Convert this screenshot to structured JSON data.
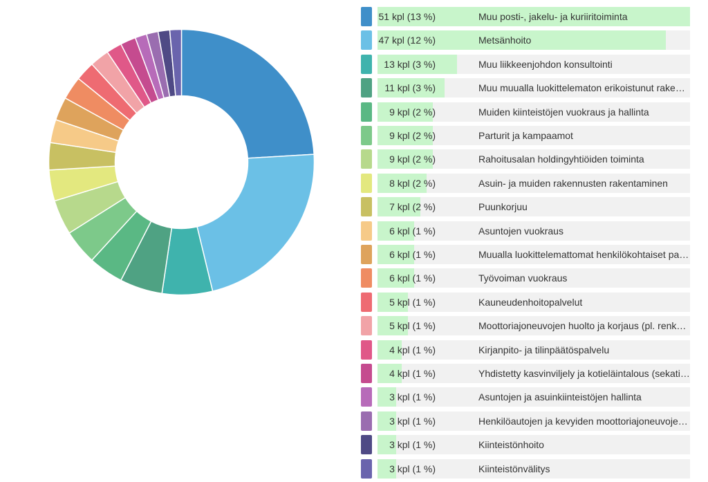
{
  "chart_data": {
    "type": "pie",
    "max_count": 51,
    "slices": [
      {
        "count": 51,
        "value_label": "51 kpl (13 %)",
        "label": "Muu posti-, jakelu- ja kuriiritoiminta",
        "color": "#3f8fc9"
      },
      {
        "count": 47,
        "value_label": "47 kpl (12 %)",
        "label": "Metsänhoito",
        "color": "#6bc0e6"
      },
      {
        "count": 13,
        "value_label": "13 kpl (3 %)",
        "label": "Muu liikkeenjohdon konsultointi",
        "color": "#3fb3ad"
      },
      {
        "count": 11,
        "value_label": "11 kpl (3 %)",
        "label": "Muu muualla luokittelematon erikoistunut rakentamistoiminta",
        "color": "#4fa283"
      },
      {
        "count": 9,
        "value_label": "9 kpl (2 %)",
        "label": "Muiden kiinteistöjen vuokraus ja hallinta",
        "color": "#5ab884"
      },
      {
        "count": 9,
        "value_label": "9 kpl (2 %)",
        "label": "Parturit ja kampaamot",
        "color": "#7dc98a"
      },
      {
        "count": 9,
        "value_label": "9 kpl (2 %)",
        "label": "Rahoitusalan holdingyhtiöiden toiminta",
        "color": "#b7d98c"
      },
      {
        "count": 8,
        "value_label": "8 kpl (2 %)",
        "label": "Asuin- ja muiden rakennusten rakentaminen",
        "color": "#e3e87f"
      },
      {
        "count": 7,
        "value_label": "7 kpl (2 %)",
        "label": "Puunkorjuu",
        "color": "#c8c062"
      },
      {
        "count": 6,
        "value_label": "6 kpl (1 %)",
        "label": "Asuntojen vuokraus",
        "color": "#f6ca88"
      },
      {
        "count": 6,
        "value_label": "6 kpl (1 %)",
        "label": "Muualla luokittelemattomat henkilökohtaiset palvelut",
        "color": "#dea35c"
      },
      {
        "count": 6,
        "value_label": "6 kpl (1 %)",
        "label": "Työvoiman vuokraus",
        "color": "#ef8c62"
      },
      {
        "count": 5,
        "value_label": "5 kpl (1 %)",
        "label": "Kauneudenhoitopalvelut",
        "color": "#ee6b72"
      },
      {
        "count": 5,
        "value_label": "5 kpl (1 %)",
        "label": "Moottoriajoneuvojen huolto ja korjaus (pl. renkaat)",
        "color": "#f1a3a7"
      },
      {
        "count": 4,
        "value_label": "4 kpl (1 %)",
        "label": "Kirjanpito- ja tilinpäätöspalvelu",
        "color": "#e05888"
      },
      {
        "count": 4,
        "value_label": "4 kpl (1 %)",
        "label": "Yhdistetty kasvinviljely ja kotieläintalous (sekatilat)",
        "color": "#c54b8f"
      },
      {
        "count": 3,
        "value_label": "3 kpl (1 %)",
        "label": "Asuntojen ja asuinkiinteistöjen hallinta",
        "color": "#b76bb9"
      },
      {
        "count": 3,
        "value_label": "3 kpl (1 %)",
        "label": "Henkilöautojen ja kevyiden moottoriajoneuvojen vähittäiskauppa",
        "color": "#9a6db0"
      },
      {
        "count": 3,
        "value_label": "3 kpl (1 %)",
        "label": "Kiinteistönhoito",
        "color": "#4f4a85"
      },
      {
        "count": 3,
        "value_label": "3 kpl (1 %)",
        "label": "Kiinteistönvälitys",
        "color": "#6a64ad"
      }
    ]
  }
}
